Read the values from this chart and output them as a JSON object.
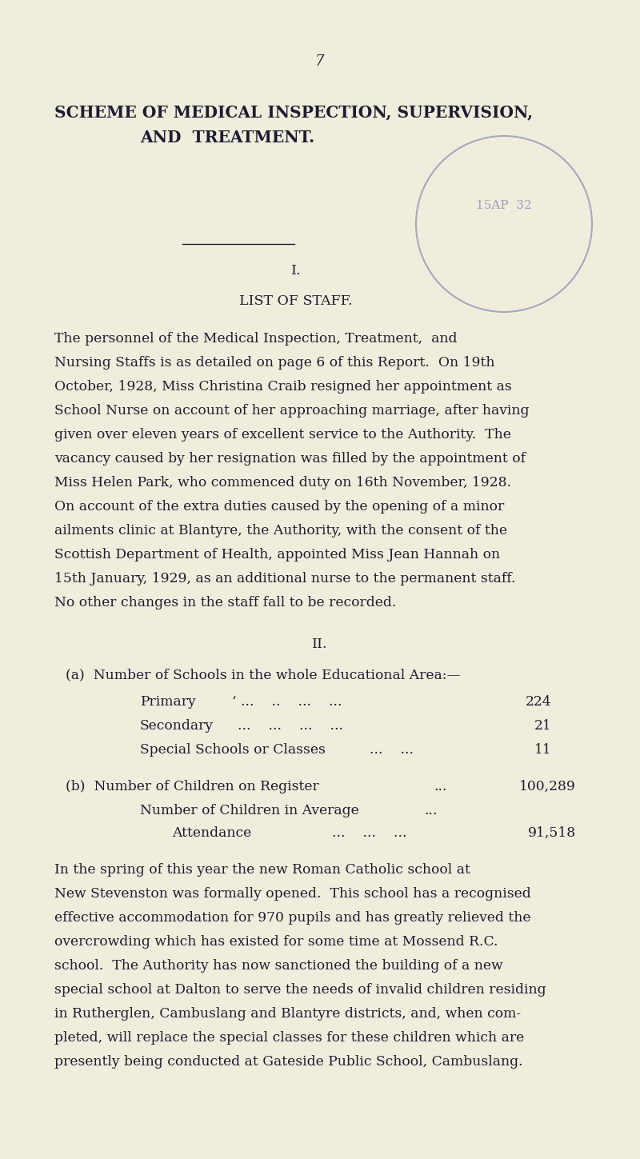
{
  "bg_color": "#f0eddc",
  "text_color": "#1c1c30",
  "stamp_color": "#9090bb",
  "page_number": "7",
  "title_line1": "SCHEME OF MEDICAL INSPECTION, SUPERVISION,",
  "title_line2": "AND  TREATMENT.",
  "section_I": "I.",
  "section_II": "II.",
  "list_of_staff": "LIST OF STAFF.",
  "stamp_text": "15AP  32",
  "para1_lines": [
    "The personnel of the Medical Inspection, Treatment,  and",
    "Nursing Staffs is as detailed on page 6 of this Report.  On 19th",
    "October, 1928, Miss Christina Craib resigned her appointment as",
    "School Nurse on account of her approaching marriage, after having",
    "given over eleven years of excellent service to the Authority.  The",
    "vacancy caused by her resignation was filled by the appointment of",
    "Miss Helen Park, who commenced duty on 16th November, 1928.",
    "On account of the extra duties caused by the opening of a minor",
    "ailments clinic at Blantyre, the Authority, with the consent of the",
    "Scottish Department of Health, appointed Miss Jean Hannah on",
    "15th January, 1929, as an additional nurse to the permanent staff.",
    "No other changes in the staff fall to be recorded."
  ],
  "section_a_heading": "(a)  Number of Schools in the whole Educational Area:—",
  "primary_label": "Primary",
  "primary_dots": "‘ ...    ..    ...    ...",
  "primary_value": "224",
  "secondary_label": "Secondary",
  "secondary_dots": "...    ...    ...    ...",
  "secondary_value": "21",
  "special_label": "Special Schools or Classes",
  "special_dots": "...    ...",
  "special_value": "11",
  "section_b_heading": "(b)  Number of Children on Register",
  "register_dots": "...",
  "register_value": "100,289",
  "average_label": "Number of Children in Average",
  "average_dots": "...",
  "attendance_label": "Attendance",
  "attendance_dots": "...    ...    ...",
  "attendance_value": "91,518",
  "para2_lines": [
    "In the spring of this year the new Roman Catholic school at",
    "New Stevenston was formally opened.  This school has a recognised",
    "effective accommodation for 970 pupils and has greatly relieved the",
    "overcrowding which has existed for some time at Mossend R.C.",
    "school.  The Authority has now sanctioned the building of a new",
    "special school at Dalton to serve the needs of invalid children residing",
    "in Rutherglen, Cambuslang and Blantyre districts, and, when com-",
    "pleted, will replace the special classes for these children which are",
    "presently being conducted at Gateside Public School, Cambuslang."
  ]
}
